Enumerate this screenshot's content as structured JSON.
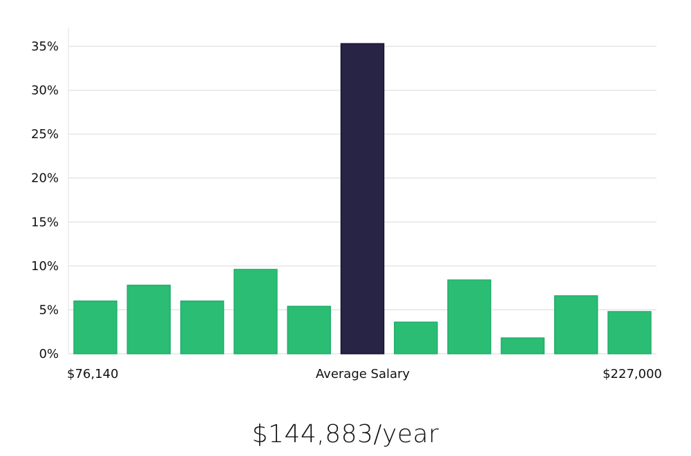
{
  "chart_data": {
    "type": "bar",
    "values": [
      6.0,
      7.8,
      6.0,
      9.6,
      5.4,
      35.3,
      3.6,
      8.4,
      1.8,
      6.6,
      4.8
    ],
    "highlight_index": 5,
    "yticks": [
      0,
      5,
      10,
      15,
      20,
      25,
      30,
      35
    ],
    "ytick_suffix": "%",
    "ylim": [
      0,
      37
    ],
    "x_min_label": "$76,140",
    "x_center_label": "Average Salary",
    "x_max_label": "$227,000",
    "grid": true,
    "colors": {
      "bar": "#2bbd74",
      "highlight": "#282446"
    }
  },
  "summary": {
    "salary": "$144,883/year"
  }
}
